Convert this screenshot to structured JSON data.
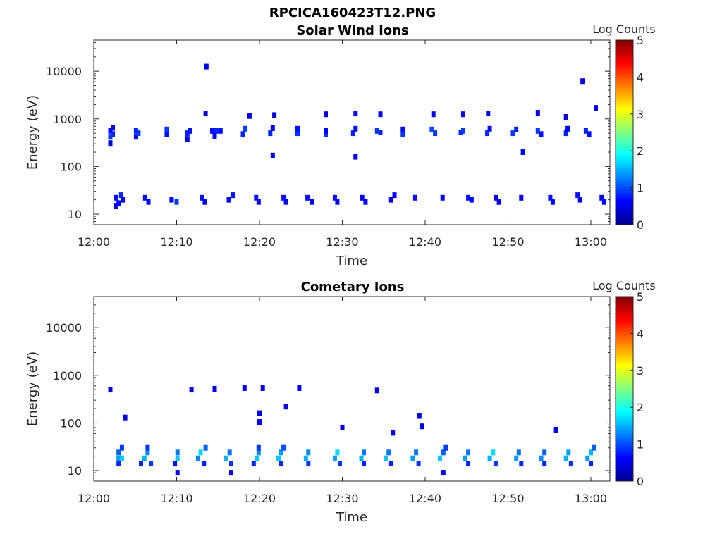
{
  "figure_title": "RPCICA160423T12.PNG",
  "colors": {
    "axis": "#262626",
    "jet_low": "#00008f",
    "jet_high": "#800000"
  },
  "chart_data": [
    {
      "type": "heatmap",
      "title": "Solar Wind Ions",
      "xlabel": "Time",
      "ylabel": "Energy (eV)",
      "x_ticks": [
        "12:00",
        "12:10",
        "12:20",
        "12:30",
        "12:40",
        "12:50",
        "13:00"
      ],
      "y_ticks": [
        "10",
        "100",
        "1000",
        "10000"
      ],
      "y_scale": "log",
      "xlim_minutes": [
        0,
        62.3
      ],
      "ylim": [
        6,
        45000
      ],
      "colorbar_label": "Log Counts",
      "colorbar_ticks": [
        "0",
        "1",
        "2",
        "3",
        "4",
        "5"
      ],
      "colorbar_range": [
        0,
        5
      ],
      "colormap": "jet",
      "cells": [
        [
          2.0,
          420,
          0.9
        ],
        [
          2.0,
          560,
          0.7
        ],
        [
          2.0,
          310,
          0.5
        ],
        [
          2.3,
          480,
          0.8
        ],
        [
          2.3,
          650,
          0.6
        ],
        [
          5.1,
          560,
          0.8
        ],
        [
          5.1,
          420,
          0.6
        ],
        [
          5.4,
          500,
          0.9
        ],
        [
          8.8,
          600,
          0.9
        ],
        [
          8.8,
          470,
          0.7
        ],
        [
          11.3,
          500,
          0.8
        ],
        [
          11.3,
          380,
          0.6
        ],
        [
          11.6,
          560,
          0.7
        ],
        [
          14.3,
          560,
          0.7
        ],
        [
          14.8,
          560,
          0.8
        ],
        [
          15.3,
          560,
          0.7
        ],
        [
          14.6,
          440,
          0.6
        ],
        [
          18.0,
          480,
          0.8
        ],
        [
          18.3,
          620,
          0.9
        ],
        [
          21.3,
          500,
          0.8
        ],
        [
          21.6,
          640,
          0.6
        ],
        [
          24.6,
          500,
          0.9
        ],
        [
          24.6,
          620,
          0.7
        ],
        [
          28.0,
          480,
          0.9
        ],
        [
          28.0,
          560,
          0.6
        ],
        [
          31.3,
          500,
          0.8
        ],
        [
          31.6,
          620,
          0.7
        ],
        [
          34.2,
          560,
          0.9
        ],
        [
          34.6,
          520,
          0.8
        ],
        [
          37.3,
          480,
          0.9
        ],
        [
          37.3,
          600,
          0.7
        ],
        [
          40.8,
          600,
          1.0
        ],
        [
          41.2,
          500,
          0.9
        ],
        [
          44.3,
          520,
          0.8
        ],
        [
          44.6,
          560,
          0.9
        ],
        [
          47.5,
          500,
          0.8
        ],
        [
          47.8,
          620,
          0.7
        ],
        [
          50.6,
          500,
          0.9
        ],
        [
          51.0,
          600,
          0.8
        ],
        [
          53.6,
          560,
          0.9
        ],
        [
          54.0,
          480,
          0.7
        ],
        [
          57.0,
          500,
          0.8
        ],
        [
          57.2,
          620,
          0.6
        ],
        [
          59.4,
          560,
          0.8
        ],
        [
          59.8,
          480,
          0.7
        ],
        [
          13.5,
          1300,
          0.5
        ],
        [
          18.8,
          1150,
          0.5
        ],
        [
          21.8,
          1200,
          0.5
        ],
        [
          28.0,
          1250,
          0.5
        ],
        [
          31.6,
          1300,
          0.6
        ],
        [
          34.6,
          1250,
          0.6
        ],
        [
          41.0,
          1250,
          0.5
        ],
        [
          44.6,
          1250,
          0.6
        ],
        [
          47.6,
          1300,
          0.5
        ],
        [
          53.6,
          1350,
          0.5
        ],
        [
          57.0,
          1100,
          0.5
        ],
        [
          60.6,
          1700,
          0.5
        ],
        [
          13.6,
          12500,
          0.5
        ],
        [
          59.0,
          6200,
          0.5
        ],
        [
          21.6,
          170,
          0.5
        ],
        [
          31.6,
          160,
          0.5
        ],
        [
          51.8,
          200,
          0.5
        ],
        [
          2.7,
          22,
          0.7
        ],
        [
          3.0,
          17,
          0.6
        ],
        [
          3.3,
          25,
          0.8
        ],
        [
          2.7,
          15,
          0.5
        ],
        [
          3.5,
          20,
          0.6
        ],
        [
          6.2,
          22,
          0.7
        ],
        [
          6.6,
          18,
          0.6
        ],
        [
          9.4,
          20,
          0.6
        ],
        [
          10.0,
          18,
          0.9
        ],
        [
          13.1,
          22,
          0.7
        ],
        [
          13.4,
          18,
          0.6
        ],
        [
          16.3,
          20,
          0.6
        ],
        [
          16.8,
          25,
          0.7
        ],
        [
          19.6,
          22,
          0.7
        ],
        [
          19.9,
          18,
          0.6
        ],
        [
          22.9,
          22,
          0.7
        ],
        [
          23.2,
          18,
          0.6
        ],
        [
          25.8,
          22,
          0.7
        ],
        [
          26.3,
          18,
          0.6
        ],
        [
          29.1,
          22,
          0.7
        ],
        [
          29.4,
          18,
          0.6
        ],
        [
          32.4,
          22,
          0.6
        ],
        [
          32.8,
          18,
          0.6
        ],
        [
          35.9,
          20,
          0.6
        ],
        [
          36.3,
          25,
          0.6
        ],
        [
          38.8,
          22,
          0.7
        ],
        [
          42.1,
          22,
          0.6
        ],
        [
          45.2,
          22,
          0.7
        ],
        [
          45.6,
          20,
          0.6
        ],
        [
          48.6,
          22,
          0.6
        ],
        [
          48.9,
          18,
          0.6
        ],
        [
          51.6,
          22,
          0.6
        ],
        [
          55.1,
          22,
          0.7
        ],
        [
          55.4,
          18,
          0.6
        ],
        [
          58.4,
          25,
          0.7
        ],
        [
          58.7,
          20,
          0.6
        ],
        [
          61.3,
          22,
          0.6
        ],
        [
          61.6,
          18,
          0.6
        ]
      ]
    },
    {
      "type": "heatmap",
      "title": "Cometary Ions",
      "xlabel": "Time",
      "ylabel": "Energy (eV)",
      "x_ticks": [
        "12:00",
        "12:10",
        "12:20",
        "12:30",
        "12:40",
        "12:50",
        "13:00"
      ],
      "y_ticks": [
        "10",
        "100",
        "1000",
        "10000"
      ],
      "y_scale": "log",
      "xlim_minutes": [
        0,
        62.3
      ],
      "ylim": [
        6,
        45000
      ],
      "colorbar_label": "Log Counts",
      "colorbar_ticks": [
        "0",
        "1",
        "2",
        "3",
        "4",
        "5"
      ],
      "colorbar_range": [
        0,
        5
      ],
      "colormap": "jet",
      "cells": [
        [
          3.0,
          14,
          0.8
        ],
        [
          3.0,
          18,
          1.4
        ],
        [
          3.0,
          24,
          1.1
        ],
        [
          3.4,
          30,
          0.9
        ],
        [
          3.4,
          18,
          1.6
        ],
        [
          5.7,
          14,
          0.8
        ],
        [
          6.1,
          18,
          1.5
        ],
        [
          6.5,
          24,
          1.3
        ],
        [
          6.9,
          14,
          0.9
        ],
        [
          6.5,
          30,
          0.9
        ],
        [
          9.8,
          14,
          0.7
        ],
        [
          10.1,
          18,
          1.6
        ],
        [
          10.1,
          24,
          1.2
        ],
        [
          10.1,
          9,
          0.6
        ],
        [
          12.6,
          18,
          1.3
        ],
        [
          12.9,
          24,
          1.7
        ],
        [
          13.3,
          14,
          0.8
        ],
        [
          13.5,
          30,
          1.1
        ],
        [
          16.0,
          18,
          1.5
        ],
        [
          16.4,
          24,
          1.2
        ],
        [
          16.6,
          14,
          0.9
        ],
        [
          16.6,
          9,
          0.6
        ],
        [
          19.3,
          14,
          0.8
        ],
        [
          19.7,
          18,
          1.6
        ],
        [
          19.9,
          24,
          1.3
        ],
        [
          19.9,
          30,
          0.9
        ],
        [
          22.3,
          18,
          1.6
        ],
        [
          22.6,
          24,
          1.4
        ],
        [
          22.9,
          30,
          1.0
        ],
        [
          22.6,
          14,
          0.8
        ],
        [
          25.6,
          18,
          1.5
        ],
        [
          25.9,
          24,
          1.3
        ],
        [
          25.9,
          14,
          0.9
        ],
        [
          29.1,
          18,
          1.4
        ],
        [
          29.4,
          24,
          1.7
        ],
        [
          29.7,
          14,
          0.9
        ],
        [
          32.3,
          18,
          1.5
        ],
        [
          32.6,
          24,
          1.2
        ],
        [
          32.6,
          14,
          0.8
        ],
        [
          35.3,
          18,
          1.6
        ],
        [
          35.6,
          24,
          1.2
        ],
        [
          35.9,
          14,
          0.8
        ],
        [
          38.5,
          18,
          1.4
        ],
        [
          38.9,
          24,
          1.2
        ],
        [
          39.2,
          14,
          0.9
        ],
        [
          41.8,
          18,
          1.6
        ],
        [
          42.2,
          24,
          1.1
        ],
        [
          42.2,
          9,
          0.6
        ],
        [
          42.5,
          30,
          0.9
        ],
        [
          44.8,
          18,
          1.4
        ],
        [
          45.2,
          24,
          1.2
        ],
        [
          45.2,
          14,
          0.8
        ],
        [
          47.8,
          18,
          1.5
        ],
        [
          48.2,
          24,
          1.7
        ],
        [
          48.5,
          14,
          0.9
        ],
        [
          51.0,
          18,
          1.4
        ],
        [
          51.3,
          24,
          1.2
        ],
        [
          51.6,
          14,
          0.8
        ],
        [
          54.0,
          18,
          1.3
        ],
        [
          54.4,
          24,
          1.1
        ],
        [
          54.4,
          14,
          0.8
        ],
        [
          57.0,
          18,
          1.5
        ],
        [
          57.3,
          24,
          1.4
        ],
        [
          57.6,
          14,
          0.9
        ],
        [
          59.6,
          18,
          1.4
        ],
        [
          60.0,
          24,
          1.5
        ],
        [
          60.4,
          30,
          1.1
        ],
        [
          60.0,
          14,
          0.8
        ],
        [
          2.0,
          500,
          0.5
        ],
        [
          11.8,
          500,
          0.5
        ],
        [
          14.6,
          520,
          0.5
        ],
        [
          18.2,
          540,
          0.5
        ],
        [
          20.4,
          540,
          0.5
        ],
        [
          24.8,
          540,
          0.5
        ],
        [
          34.2,
          480,
          0.6
        ],
        [
          20.0,
          160,
          0.5
        ],
        [
          20.0,
          105,
          0.5
        ],
        [
          23.2,
          220,
          0.6
        ],
        [
          39.3,
          140,
          0.5
        ],
        [
          39.6,
          85,
          0.5
        ],
        [
          30.0,
          80,
          0.5
        ],
        [
          3.8,
          130,
          0.5
        ],
        [
          36.1,
          62,
          0.6
        ],
        [
          55.8,
          72,
          0.5
        ]
      ]
    }
  ]
}
